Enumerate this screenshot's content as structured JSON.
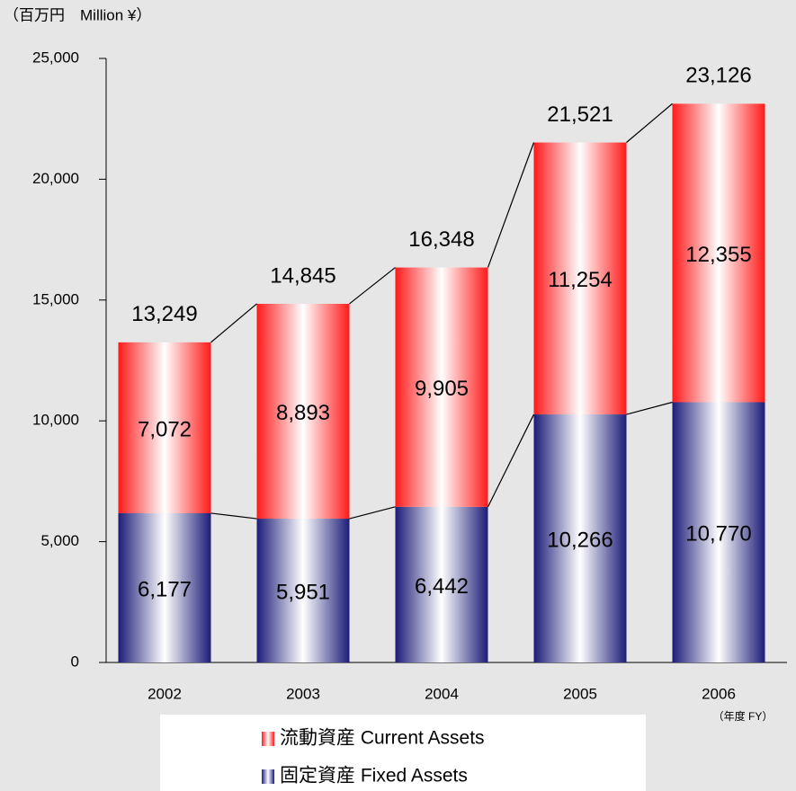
{
  "chart_data": {
    "type": "stacked_bar",
    "unit_label": "（百万円　Million ¥）",
    "x_unit_label": "（年度 FY）",
    "categories": [
      "2002",
      "2003",
      "2004",
      "2005",
      "2006"
    ],
    "series": [
      {
        "name": "固定資産 Fixed Assets",
        "color": "#1c1c78",
        "values": [
          6177,
          5951,
          6442,
          10266,
          10770
        ],
        "value_labels": [
          "6,177",
          "5,951",
          "6,442",
          "10,266",
          "10,770"
        ]
      },
      {
        "name": "流動資産 Current Assets",
        "color": "#ff1a1a",
        "values": [
          7072,
          8893,
          9905,
          11254,
          12355
        ],
        "value_labels": [
          "7,072",
          "8,893",
          "9,905",
          "11,254",
          "12,355"
        ]
      }
    ],
    "totals": {
      "values": [
        13249,
        14845,
        16348,
        21521,
        23126
      ],
      "value_labels": [
        "13,249",
        "14,845",
        "16,348",
        "21,521",
        "23,126"
      ]
    },
    "ylim": [
      0,
      25000
    ],
    "yticks": [
      0,
      {
        "value": 5000,
        "label": "5,000"
      },
      {
        "value": 10000,
        "label": "10,000"
      },
      {
        "value": 15000,
        "label": "15,000"
      },
      {
        "value": 20000,
        "label": "20,000"
      },
      {
        "value": 25000,
        "label": "25,000"
      }
    ]
  }
}
